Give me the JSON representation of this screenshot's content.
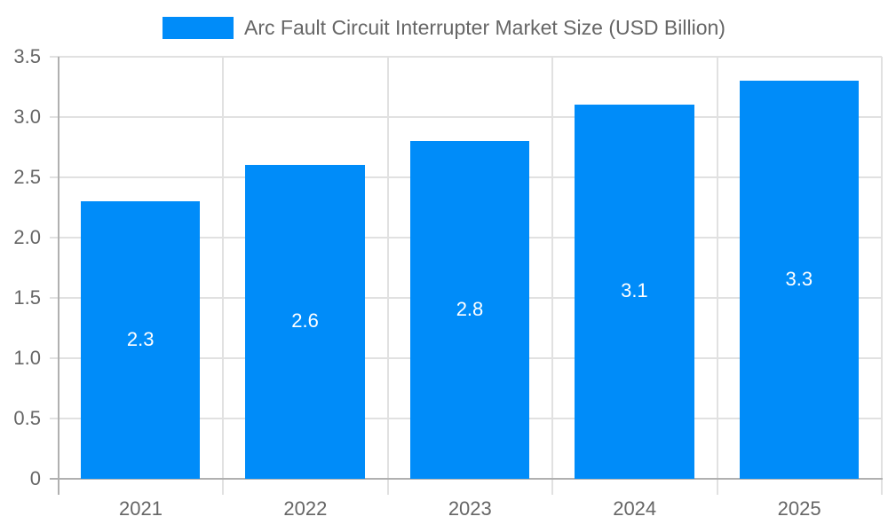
{
  "legend": {
    "label": "Arc Fault Circuit Interrupter Market Size (USD Billion)",
    "color": "#008cf9"
  },
  "y_ticks": [
    "3.5",
    "3.0",
    "2.5",
    "2.0",
    "1.5",
    "1.0",
    "0.5",
    "0"
  ],
  "chart_data": {
    "type": "bar",
    "title": "",
    "categories": [
      "2021",
      "2022",
      "2023",
      "2024",
      "2025"
    ],
    "series": [
      {
        "name": "Arc Fault Circuit Interrupter Market Size (USD Billion)",
        "values": [
          2.3,
          2.6,
          2.8,
          3.1,
          3.3
        ]
      }
    ],
    "values": [
      2.3,
      2.6,
      2.8,
      3.1,
      3.3
    ],
    "data_labels": [
      "2.3",
      "2.6",
      "2.8",
      "3.1",
      "3.3"
    ],
    "xlabel": "",
    "ylabel": "",
    "ylim": [
      0,
      3.5
    ],
    "ytick_step": 0.5,
    "grid": true,
    "legend_position": "top",
    "bar_color": "#008cf9"
  }
}
